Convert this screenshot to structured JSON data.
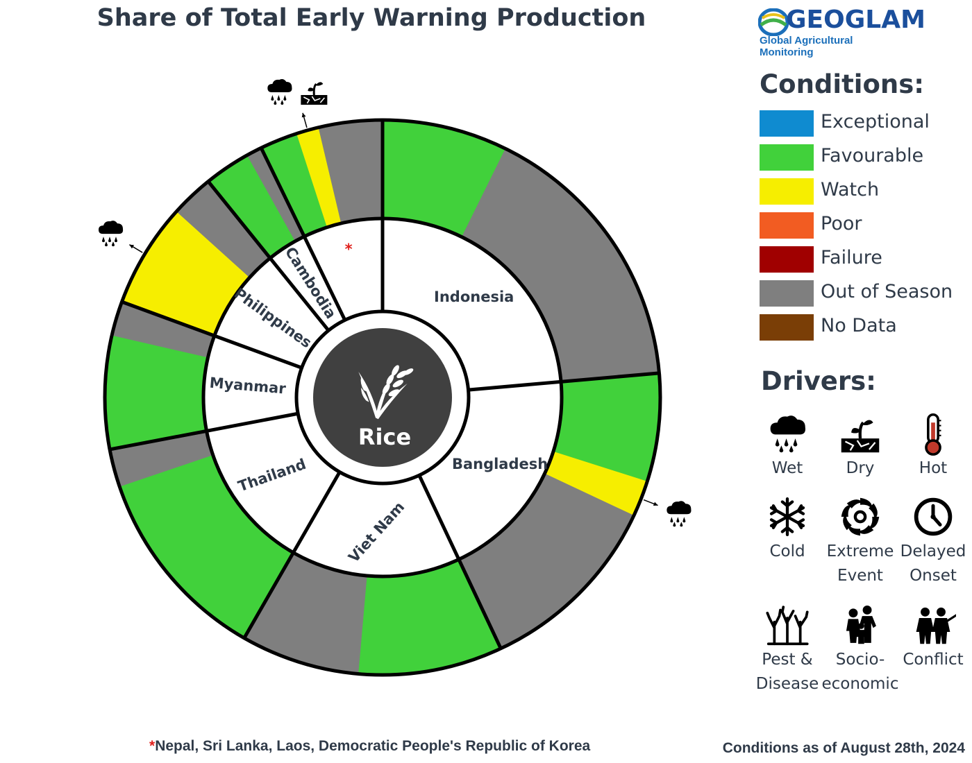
{
  "title": "Share of Total Early Warning Production",
  "logo": {
    "name": "GEOGLAM",
    "subtitle": "Global Agricultural Monitoring"
  },
  "colors": {
    "Exceptional": "#0f8bd0",
    "Favourable": "#41d13b",
    "Watch": "#f6ee00",
    "Poor": "#f25c22",
    "Failure": "#a00000",
    "Out of Season": "#7f7f7f",
    "No Data": "#7a3e06"
  },
  "legend": {
    "conditions_title": "Conditions:",
    "conditions": [
      "Exceptional",
      "Favourable",
      "Watch",
      "Poor",
      "Failure",
      "Out of Season",
      "No Data"
    ],
    "drivers_title": "Drivers:",
    "drivers": [
      {
        "icon": "wet-icon",
        "lines": [
          "Wet"
        ]
      },
      {
        "icon": "dry-icon",
        "lines": [
          "Dry"
        ]
      },
      {
        "icon": "hot-icon",
        "lines": [
          "Hot"
        ]
      },
      {
        "icon": "cold-icon",
        "lines": [
          "Cold"
        ]
      },
      {
        "icon": "extreme-event-icon",
        "lines": [
          "Extreme",
          "Event"
        ]
      },
      {
        "icon": "delayed-onset-icon",
        "lines": [
          "Delayed",
          "Onset"
        ]
      },
      {
        "icon": "pest-disease-icon",
        "lines": [
          "Pest &",
          "Disease"
        ]
      },
      {
        "icon": "socio-economic-icon",
        "lines": [
          "Socio-",
          "economic"
        ]
      },
      {
        "icon": "conflict-icon",
        "lines": [
          "Conflict"
        ]
      }
    ]
  },
  "chart_data": {
    "type": "sunburst",
    "title": "Share of Total Early Warning Production",
    "center_label": "Rice",
    "unit": "share of total rice production (%)",
    "countries": [
      {
        "name": "Indonesia",
        "share": 23.6,
        "segments": [
          {
            "condition": "Favourable",
            "share": 7.3
          },
          {
            "condition": "Out of Season",
            "share": 16.3
          }
        ]
      },
      {
        "name": "Bangladesh",
        "share": 19.4,
        "segments": [
          {
            "condition": "Favourable",
            "share": 6.3
          },
          {
            "condition": "Watch",
            "share": 2.1,
            "drivers": [
              "Wet"
            ]
          },
          {
            "condition": "Out of Season",
            "share": 11.0
          }
        ]
      },
      {
        "name": "Viet Nam",
        "share": 15.3,
        "segments": [
          {
            "condition": "Favourable",
            "share": 8.4
          },
          {
            "condition": "Out of Season",
            "share": 6.9
          }
        ]
      },
      {
        "name": "Thailand",
        "share": 13.7,
        "segments": [
          {
            "condition": "Favourable",
            "share": 11.5
          },
          {
            "condition": "Out of Season",
            "share": 2.2
          }
        ]
      },
      {
        "name": "Myanmar",
        "share": 8.6,
        "segments": [
          {
            "condition": "Favourable",
            "share": 6.6
          },
          {
            "condition": "Out of Season",
            "share": 2.0
          }
        ]
      },
      {
        "name": "Philippines",
        "share": 8.6,
        "segments": [
          {
            "condition": "Watch",
            "share": 6.1,
            "drivers": [
              "Wet"
            ]
          },
          {
            "condition": "Out of Season",
            "share": 2.5
          }
        ]
      },
      {
        "name": "Cambodia",
        "share": 3.6,
        "segments": [
          {
            "condition": "Favourable",
            "share": 2.7
          },
          {
            "condition": "Out of Season",
            "share": 0.9
          }
        ]
      },
      {
        "name": "*",
        "share": 7.2,
        "segments": [
          {
            "condition": "Favourable",
            "share": 2.2
          },
          {
            "condition": "Watch",
            "share": 1.3,
            "drivers": [
              "Wet",
              "Dry"
            ]
          },
          {
            "condition": "Out of Season",
            "share": 3.7
          }
        ]
      }
    ]
  },
  "footnote": {
    "star": "*",
    "text": "Nepal, Sri Lanka, Laos, Democratic People's Republic of Korea"
  },
  "as_of": "Conditions as of August 28th, 2024"
}
